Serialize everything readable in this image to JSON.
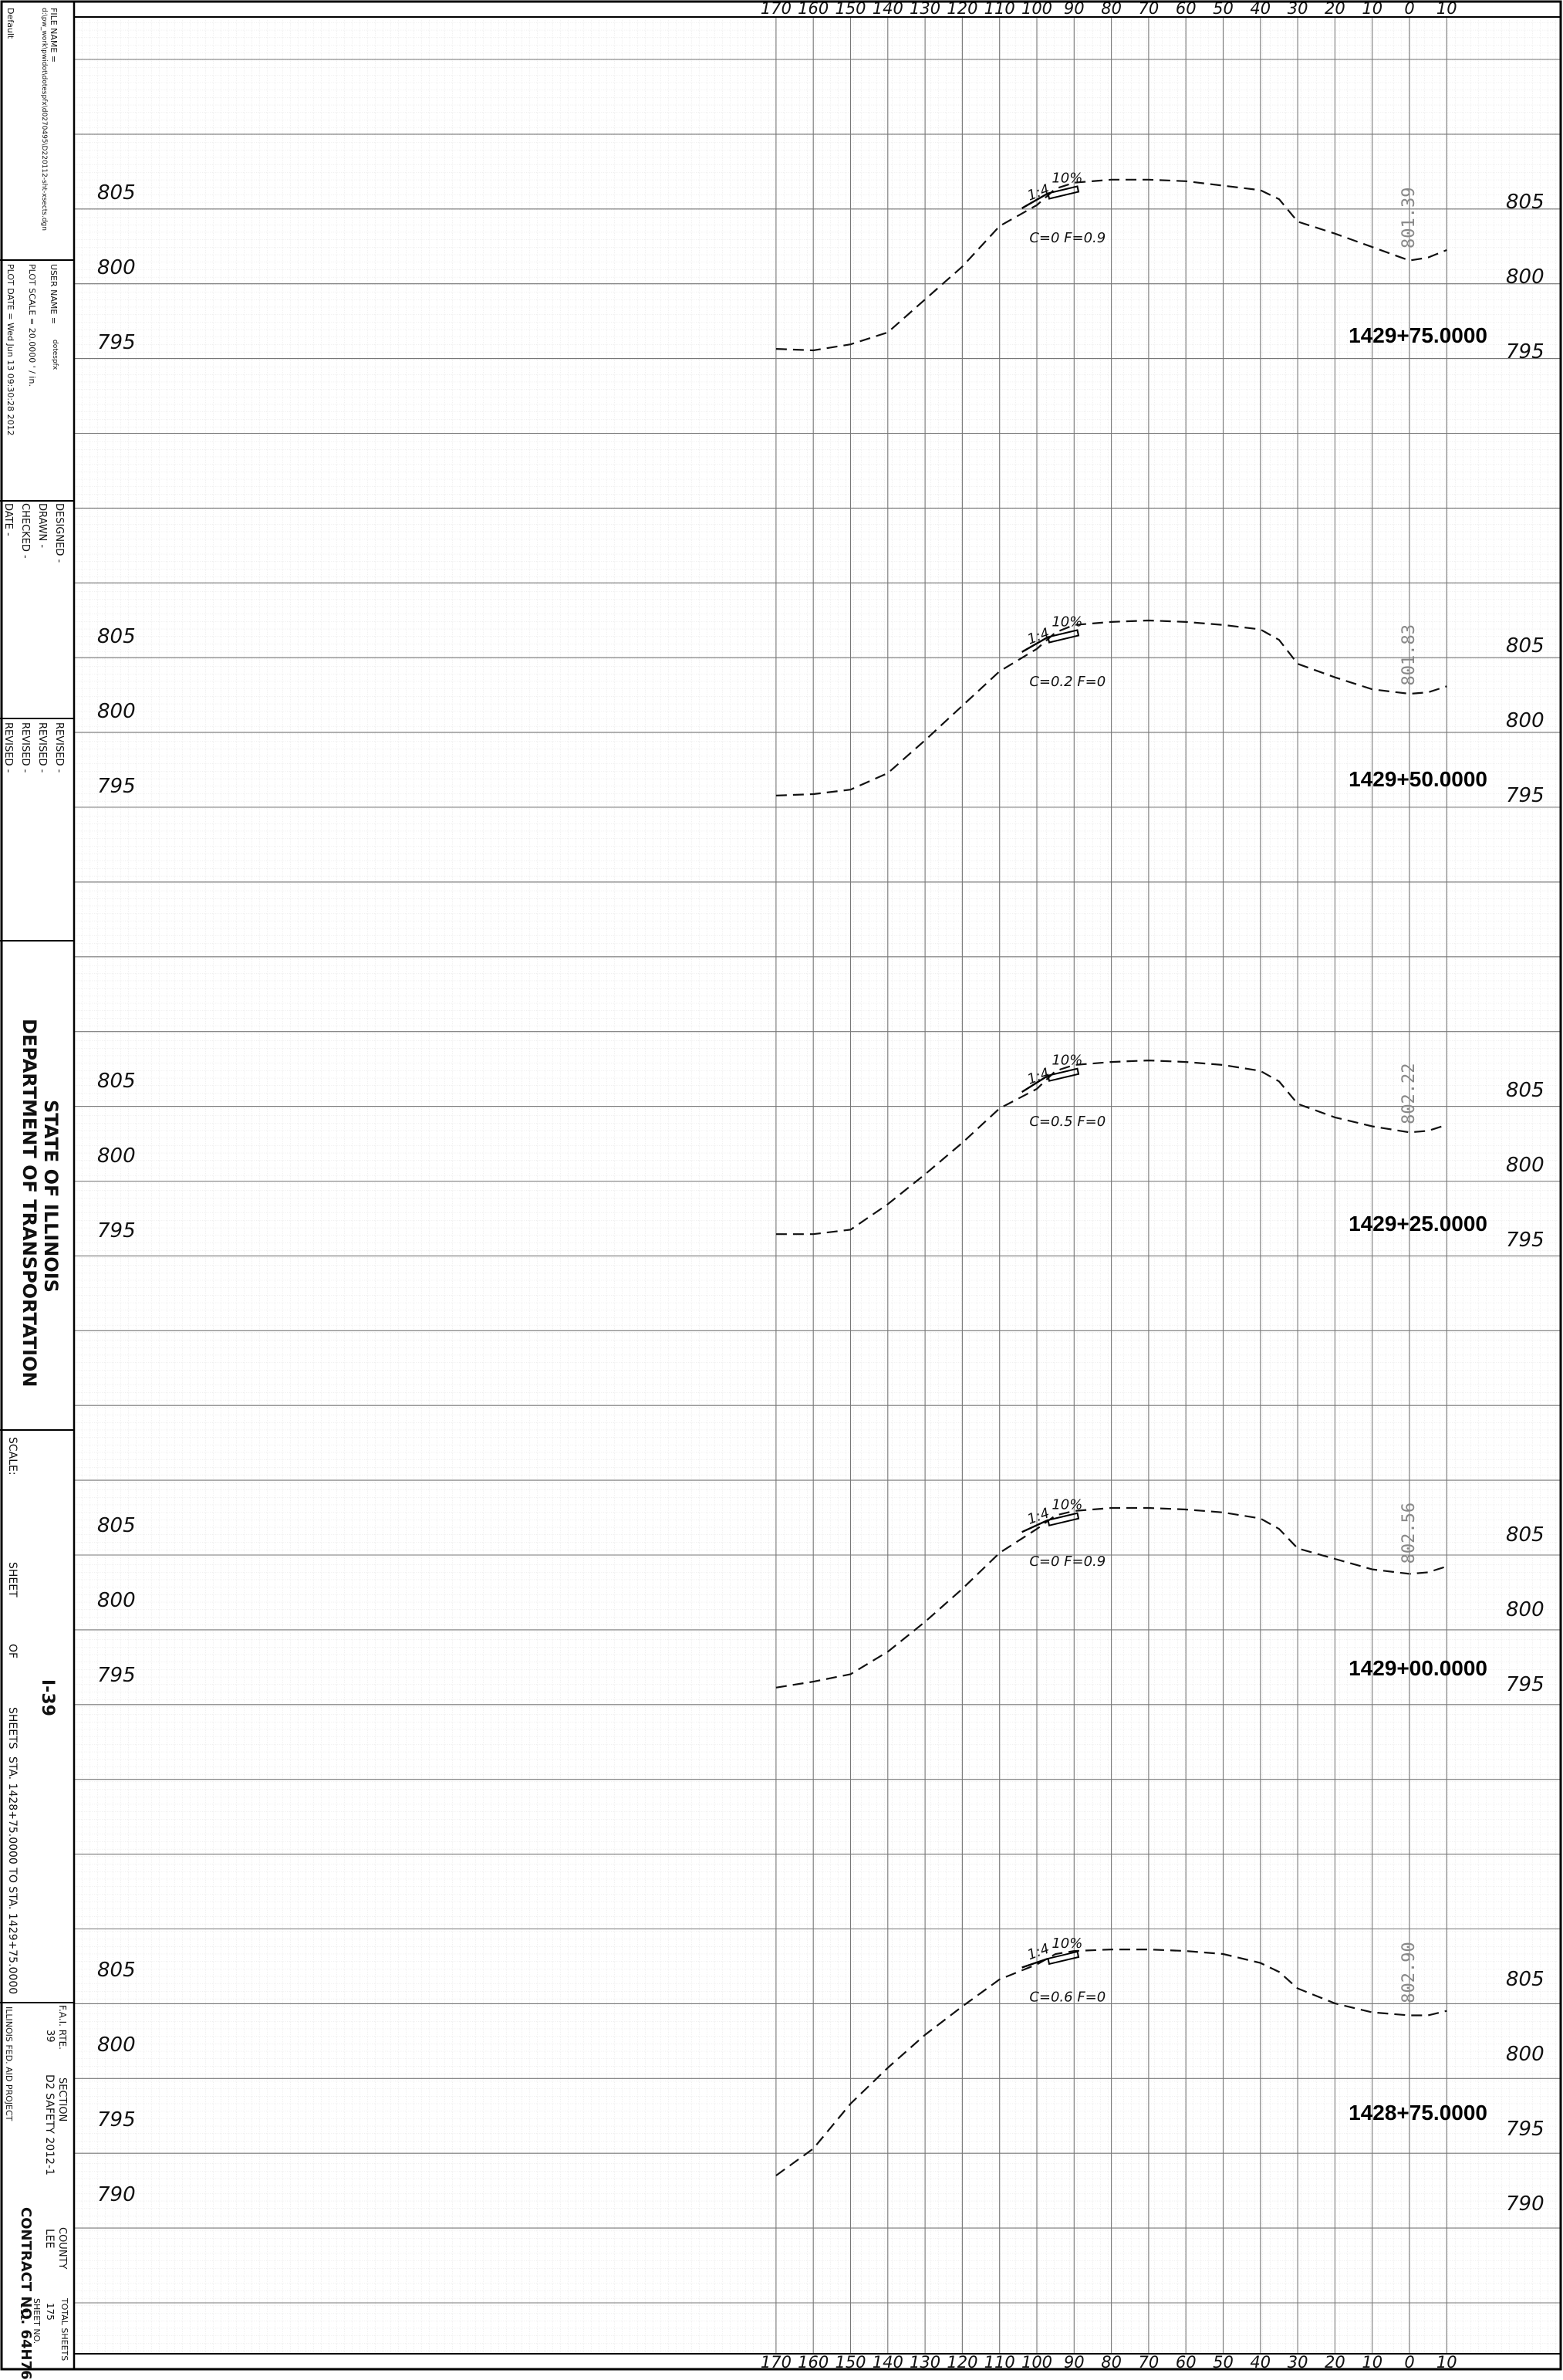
{
  "title_block": {
    "file_label": "FILE NAME =",
    "file_name": "d:\\pw_work\\pwidot\\dotespfx\\d0270495\\D220112-sht-xsects.dgn",
    "default_label": "Default",
    "user_label": "USER NAME =",
    "user_name": "dotespfx",
    "plot_scale": "PLOT SCALE = 20.0000 ' / in.",
    "plot_date": "PLOT DATE = Wed Jun 13 09:30:28 2012",
    "designed": "DESIGNED -",
    "drawn": "DRAWN -",
    "checked": "CHECKED -",
    "date": "DATE -",
    "revised": "REVISED -",
    "state": "STATE OF ILLINOIS",
    "department": "DEPARTMENT OF TRANSPORTATION",
    "scale_label": "SCALE:",
    "sheet_label": "SHEET",
    "of_label": "OF",
    "sheets_label": "SHEETS",
    "station_range": "STA. 1428+75.0000 TO STA. 1429+75.0000",
    "route": "I-39",
    "fa_rte": "F.A.I. RTE.",
    "fa_rte_value": "39",
    "section_label": "SECTION",
    "section_value": "D2 SAFETY 2012-1",
    "county_label": "COUNTY",
    "county_value": "LEE",
    "total_sheets_label": "TOTAL SHEETS",
    "total_sheets_value": "175",
    "sheet_no_label": "SHEET NO.",
    "sheet_no_value": "111",
    "contract": "CONTRACT NO. 64H76",
    "project": "ILLINOIS FED. AID PROJECT"
  },
  "axis_ticks": [
    "170",
    "160",
    "150",
    "140",
    "130",
    "120",
    "110",
    "100",
    "90",
    "80",
    "70",
    "60",
    "50",
    "40",
    "30",
    "20",
    "10",
    "0",
    "10"
  ],
  "sections": [
    {
      "station": "1429+75.0000",
      "elev_labels": [
        "805",
        "800",
        "795"
      ],
      "centerline_elev": "801.39",
      "slope_label": "1:4",
      "cross_slope": "10%",
      "cut_fill": "C=0   F=0.9",
      "profile": [
        [
          -170,
          795.1
        ],
        [
          -160,
          795.0
        ],
        [
          -150,
          795.4
        ],
        [
          -140,
          796.2
        ],
        [
          -130,
          798.4
        ],
        [
          -120,
          800.6
        ],
        [
          -110,
          803.3
        ],
        [
          -100,
          804.7
        ],
        [
          -95,
          805.8
        ],
        [
          -90,
          806.2
        ],
        [
          -80,
          806.4
        ],
        [
          -70,
          806.4
        ],
        [
          -60,
          806.3
        ],
        [
          -50,
          806.0
        ],
        [
          -40,
          805.7
        ],
        [
          -35,
          805.1
        ],
        [
          -30,
          803.6
        ],
        [
          -20,
          802.8
        ],
        [
          -10,
          801.9
        ],
        [
          0,
          801.0
        ],
        [
          5,
          801.2
        ],
        [
          10,
          801.7
        ]
      ]
    },
    {
      "station": "1429+50.0000",
      "elev_labels": [
        "805",
        "800",
        "795"
      ],
      "centerline_elev": "801.83",
      "slope_label": "1:4",
      "cross_slope": "10%",
      "cut_fill": "C=0.2   F=0",
      "profile": [
        [
          -170,
          794.9
        ],
        [
          -160,
          795.0
        ],
        [
          -150,
          795.3
        ],
        [
          -140,
          796.4
        ],
        [
          -130,
          798.6
        ],
        [
          -120,
          800.9
        ],
        [
          -110,
          803.2
        ],
        [
          -100,
          804.7
        ],
        [
          -95,
          805.8
        ],
        [
          -90,
          806.3
        ],
        [
          -80,
          806.5
        ],
        [
          -70,
          806.6
        ],
        [
          -60,
          806.5
        ],
        [
          -50,
          806.3
        ],
        [
          -40,
          806.0
        ],
        [
          -35,
          805.3
        ],
        [
          -30,
          803.7
        ],
        [
          -20,
          802.8
        ],
        [
          -10,
          802.0
        ],
        [
          0,
          801.7
        ],
        [
          5,
          801.8
        ],
        [
          10,
          802.2
        ]
      ]
    },
    {
      "station": "1429+25.0000",
      "elev_labels": [
        "805",
        "800",
        "795"
      ],
      "centerline_elev": "802.22",
      "slope_label": "1:4",
      "cross_slope": "10%",
      "cut_fill": "C=0.5   F=0",
      "profile": [
        [
          -170,
          795.3
        ],
        [
          -160,
          795.3
        ],
        [
          -150,
          795.6
        ],
        [
          -140,
          797.3
        ],
        [
          -130,
          799.3
        ],
        [
          -120,
          801.4
        ],
        [
          -110,
          803.7
        ],
        [
          -100,
          805.0
        ],
        [
          -95,
          806.2
        ],
        [
          -90,
          806.6
        ],
        [
          -80,
          806.8
        ],
        [
          -70,
          806.9
        ],
        [
          -60,
          806.8
        ],
        [
          -50,
          806.6
        ],
        [
          -40,
          806.2
        ],
        [
          -35,
          805.5
        ],
        [
          -30,
          804.0
        ],
        [
          -20,
          803.1
        ],
        [
          -10,
          802.5
        ],
        [
          0,
          802.1
        ],
        [
          5,
          802.2
        ],
        [
          10,
          802.6
        ]
      ]
    },
    {
      "station": "1429+00.0000",
      "elev_labels": [
        "805",
        "800",
        "795"
      ],
      "centerline_elev": "802.56",
      "slope_label": "1:4",
      "cross_slope": "10%",
      "cut_fill": "C=0   F=0.9",
      "profile": [
        [
          -170,
          794.7
        ],
        [
          -160,
          795.1
        ],
        [
          -150,
          795.6
        ],
        [
          -140,
          797.1
        ],
        [
          -130,
          799.1
        ],
        [
          -120,
          801.3
        ],
        [
          -110,
          803.7
        ],
        [
          -100,
          805.3
        ],
        [
          -95,
          806.2
        ],
        [
          -90,
          806.5
        ],
        [
          -80,
          806.7
        ],
        [
          -70,
          806.7
        ],
        [
          -60,
          806.6
        ],
        [
          -50,
          806.4
        ],
        [
          -40,
          806.0
        ],
        [
          -35,
          805.3
        ],
        [
          -30,
          804.0
        ],
        [
          -20,
          803.3
        ],
        [
          -10,
          802.6
        ],
        [
          0,
          802.3
        ],
        [
          5,
          802.4
        ],
        [
          10,
          802.8
        ]
      ]
    },
    {
      "station": "1428+75.0000",
      "elev_labels": [
        "805",
        "800",
        "795",
        "790"
      ],
      "centerline_elev": "802.90",
      "slope_label": "1:4",
      "cross_slope": "10%",
      "cut_fill": "C=0.6   F=0",
      "profile": [
        [
          -170,
          791.8
        ],
        [
          -160,
          793.6
        ],
        [
          -150,
          796.6
        ],
        [
          -140,
          799.0
        ],
        [
          -130,
          801.2
        ],
        [
          -120,
          803.1
        ],
        [
          -110,
          804.9
        ],
        [
          -100,
          805.9
        ],
        [
          -95,
          806.6
        ],
        [
          -90,
          806.8
        ],
        [
          -80,
          806.9
        ],
        [
          -70,
          806.9
        ],
        [
          -60,
          806.8
        ],
        [
          -50,
          806.6
        ],
        [
          -40,
          806.0
        ],
        [
          -35,
          805.4
        ],
        [
          -30,
          804.3
        ],
        [
          -20,
          803.3
        ],
        [
          -10,
          802.7
        ],
        [
          0,
          802.5
        ],
        [
          5,
          802.5
        ],
        [
          10,
          802.8
        ]
      ]
    }
  ]
}
